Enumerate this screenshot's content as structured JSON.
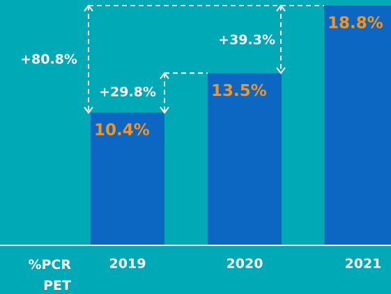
{
  "chart_data": {
    "type": "bar",
    "categories": [
      "2019",
      "2020",
      "2021"
    ],
    "values": [
      10.4,
      13.5,
      18.8
    ],
    "value_labels": [
      "10.4%",
      "13.5%",
      "18.8%"
    ],
    "color": "#0b67c2",
    "label_color": "#f7941d",
    "x_label": "%PCR PET",
    "annotations": [
      "+80.8%",
      "+39.3%",
      "+29.8%"
    ]
  }
}
